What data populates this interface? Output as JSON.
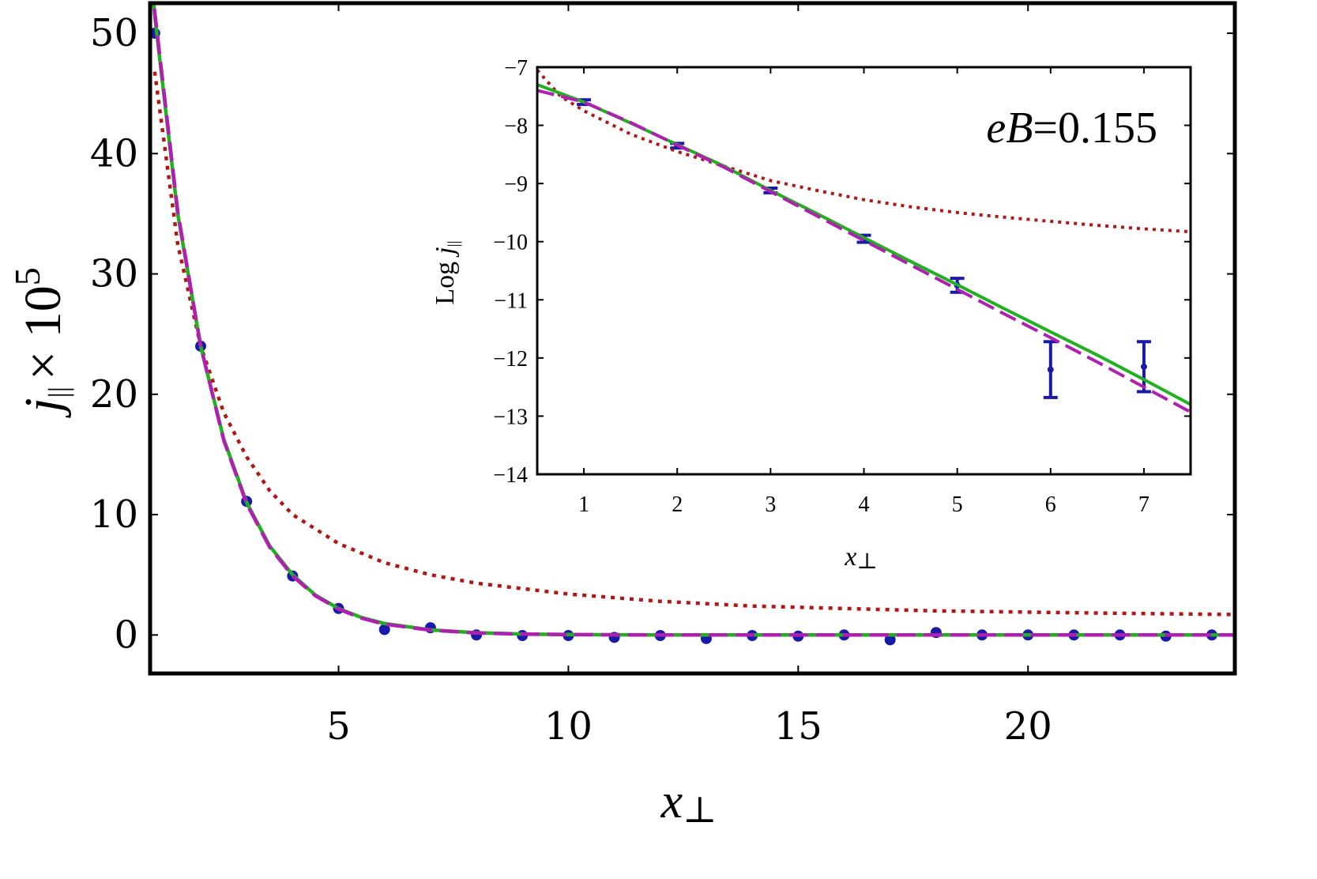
{
  "chart_data": [
    {
      "type": "scatter",
      "panel": "main",
      "x_label": {
        "var": "x",
        "sub": "⊥"
      },
      "y_label": {
        "var": "j",
        "sub": "||",
        "times": "× 10",
        "exp": "5"
      },
      "xlim": [
        0.9,
        24.5
      ],
      "ylim": [
        -3.2,
        52.5
      ],
      "x_ticks": [
        5,
        10,
        15,
        20
      ],
      "y_ticks": [
        0,
        10,
        20,
        30,
        40,
        50
      ],
      "series": [
        {
          "style": "points",
          "x": [
            1,
            2,
            3,
            4,
            5,
            6,
            7,
            8,
            9,
            10,
            11,
            12,
            13,
            14,
            15,
            16,
            17,
            18,
            19,
            20,
            21,
            22,
            23,
            24
          ],
          "y": [
            50.0,
            24.0,
            11.1,
            4.9,
            2.2,
            0.45,
            0.6,
            0.0,
            -0.05,
            -0.05,
            -0.2,
            -0.05,
            -0.3,
            -0.05,
            -0.1,
            0.0,
            -0.4,
            0.2,
            0.0,
            0.0,
            0.0,
            0.0,
            -0.1,
            0.0
          ],
          "err": [
            0.5,
            0.5,
            0.4,
            0.4,
            0.3,
            0.3,
            0.3,
            0.3,
            0.3,
            0.3,
            0.3,
            0.3,
            0.3,
            0.3,
            0.3,
            0.3,
            0.3,
            0.3,
            0.3,
            0.3,
            0.3,
            0.3,
            0.3,
            0.3
          ],
          "color": "#1a1aa8"
        },
        {
          "style": "dotted",
          "color": "#b01818",
          "x": [
            1,
            1.5,
            2,
            2.5,
            3,
            3.5,
            4,
            5,
            6,
            7,
            8,
            10,
            12,
            14,
            16,
            18,
            20,
            22,
            24.5
          ],
          "y": [
            46.8,
            32.5,
            24.0,
            18.5,
            14.8,
            12.0,
            10.0,
            7.6,
            6.0,
            5.0,
            4.3,
            3.4,
            2.8,
            2.4,
            2.2,
            2.0,
            1.9,
            1.8,
            1.7
          ]
        },
        {
          "style": "solid",
          "color": "#22b022",
          "x": [
            0.9,
            1,
            1.5,
            2,
            2.5,
            3,
            3.5,
            4,
            4.5,
            5,
            5.5,
            6,
            7,
            8,
            9,
            10,
            12,
            14,
            16,
            18,
            20,
            22,
            24.5
          ],
          "y": [
            56.0,
            51.5,
            35.0,
            24.0,
            16.3,
            11.0,
            7.4,
            5.0,
            3.3,
            2.2,
            1.45,
            0.95,
            0.42,
            0.18,
            0.08,
            0.03,
            0.0,
            0.0,
            0.0,
            0.0,
            0.0,
            0.0,
            0.0
          ]
        },
        {
          "style": "dashed",
          "color": "#b020b0",
          "x": [
            0.9,
            1,
            1.5,
            2,
            2.5,
            3,
            3.5,
            4,
            4.5,
            5,
            5.5,
            6,
            7,
            8,
            9,
            10,
            12,
            14,
            16,
            18,
            20,
            22,
            24.5
          ],
          "y": [
            56.5,
            51.8,
            35.2,
            24.0,
            16.2,
            10.9,
            7.3,
            4.9,
            3.25,
            2.15,
            1.4,
            0.9,
            0.4,
            0.17,
            0.07,
            0.03,
            0.0,
            0.0,
            0.0,
            0.0,
            0.0,
            0.0,
            0.0
          ]
        }
      ]
    },
    {
      "type": "scatter",
      "panel": "inset",
      "x_label": {
        "var": "x",
        "sub": "⊥"
      },
      "y_label": {
        "prefix": "Log",
        "var": "j",
        "sub": "||"
      },
      "xlim": [
        0.5,
        7.5
      ],
      "ylim": [
        -14,
        -7
      ],
      "x_ticks": [
        1,
        2,
        3,
        4,
        5,
        6,
        7
      ],
      "y_ticks": [
        -7,
        -8,
        -9,
        -10,
        -11,
        -12,
        -13,
        -14
      ],
      "annotation": {
        "var": "eB",
        "value": "=0.155"
      },
      "series": [
        {
          "style": "points",
          "x": [
            1,
            2,
            3,
            4,
            5,
            6,
            7
          ],
          "y": [
            -7.6,
            -8.35,
            -9.12,
            -9.95,
            -10.75,
            -12.2,
            -12.15
          ],
          "err": [
            0.04,
            0.04,
            0.04,
            0.06,
            0.12,
            0.48,
            0.43
          ],
          "color": "#1a1aa8"
        },
        {
          "style": "dotted",
          "color": "#b01818",
          "x": [
            0.5,
            0.75,
            1,
            1.5,
            2,
            2.5,
            3,
            3.5,
            4,
            4.5,
            5,
            5.5,
            6,
            6.5,
            7,
            7.5
          ],
          "y": [
            -7.05,
            -7.5,
            -7.75,
            -8.15,
            -8.45,
            -8.7,
            -8.95,
            -9.12,
            -9.28,
            -9.4,
            -9.5,
            -9.58,
            -9.65,
            -9.72,
            -9.78,
            -9.83
          ]
        },
        {
          "style": "solid",
          "color": "#22b022",
          "x": [
            0.5,
            1,
            1.5,
            2,
            2.5,
            3,
            3.5,
            4,
            4.5,
            5,
            5.5,
            6,
            6.5,
            7,
            7.5
          ],
          "y": [
            -7.3,
            -7.6,
            -7.96,
            -8.33,
            -8.7,
            -9.12,
            -9.52,
            -9.93,
            -10.34,
            -10.74,
            -11.15,
            -11.55,
            -11.95,
            -12.37,
            -12.8
          ]
        },
        {
          "style": "dashed",
          "color": "#b020b0",
          "x": [
            0.5,
            1,
            1.5,
            2,
            2.5,
            3,
            3.5,
            4,
            4.5,
            5,
            5.5,
            6,
            6.5,
            7,
            7.5
          ],
          "y": [
            -7.4,
            -7.6,
            -7.95,
            -8.34,
            -8.72,
            -9.14,
            -9.56,
            -9.98,
            -10.4,
            -10.82,
            -11.24,
            -11.65,
            -12.07,
            -12.5,
            -12.93
          ]
        }
      ]
    }
  ]
}
